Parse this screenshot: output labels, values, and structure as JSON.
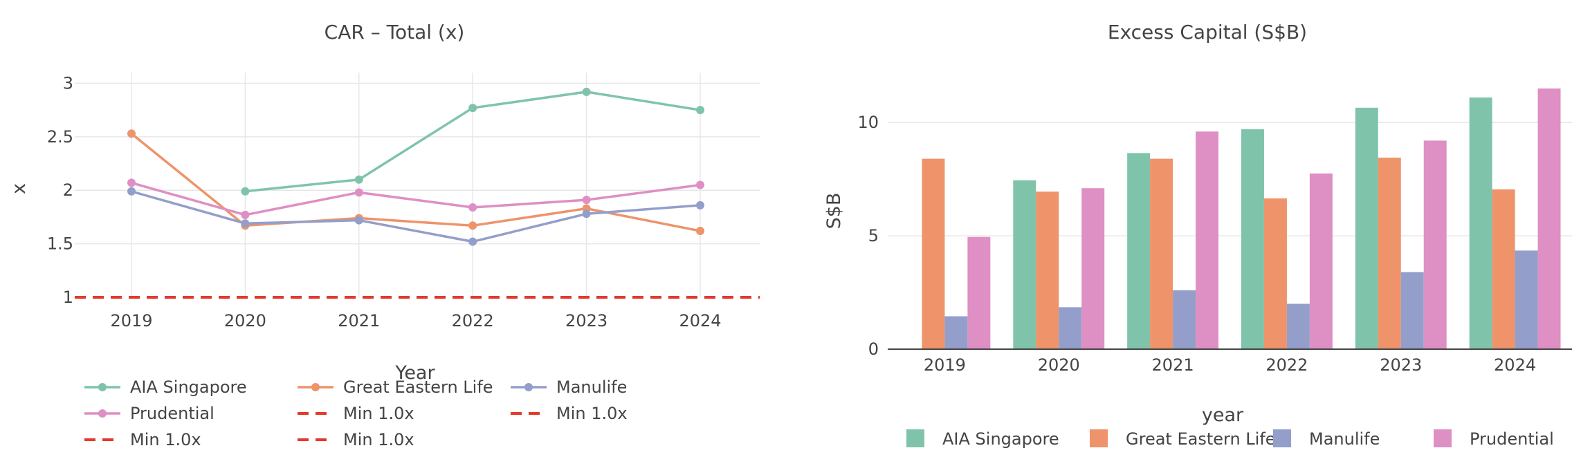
{
  "chart_data": [
    {
      "type": "line",
      "title": "CAR – Total (x)",
      "xlabel": "Year",
      "ylabel": "x",
      "x": [
        2019,
        2020,
        2021,
        2022,
        2023,
        2024
      ],
      "ylim": [
        1,
        3.1
      ],
      "yticks": [
        1,
        1.5,
        2,
        2.5,
        3
      ],
      "ytick_labels": [
        "1",
        "1.5",
        "2",
        "2.5",
        "3"
      ],
      "grid": true,
      "legend_position": "bottom",
      "series": [
        {
          "name": "AIA Singapore",
          "color": "#7fc4aa",
          "style": "line-markers",
          "values": [
            null,
            1.99,
            2.1,
            2.77,
            2.92,
            2.75
          ]
        },
        {
          "name": "Great Eastern Life",
          "color": "#ee936a",
          "style": "line-markers",
          "values": [
            2.53,
            1.67,
            1.74,
            1.67,
            1.83,
            1.62
          ]
        },
        {
          "name": "Manulife",
          "color": "#939fca",
          "style": "line-markers",
          "values": [
            1.99,
            1.69,
            1.72,
            1.52,
            1.78,
            1.86
          ]
        },
        {
          "name": "Prudential",
          "color": "#de8fc3",
          "style": "line-markers",
          "values": [
            2.07,
            1.77,
            1.98,
            1.84,
            1.91,
            2.05
          ]
        },
        {
          "name": "Min 1.0x",
          "color": "#e23a2e",
          "style": "dash",
          "values": [
            1,
            1,
            1,
            1,
            1,
            1
          ]
        },
        {
          "name": "Min 1.0x",
          "color": "#e23a2e",
          "style": "dash",
          "values": [
            1,
            1,
            1,
            1,
            1,
            1
          ]
        },
        {
          "name": "Min 1.0x",
          "color": "#e23a2e",
          "style": "dash",
          "values": [
            1,
            1,
            1,
            1,
            1,
            1
          ]
        },
        {
          "name": "Min 1.0x",
          "color": "#e23a2e",
          "style": "dash",
          "values": [
            1,
            1,
            1,
            1,
            1,
            1
          ]
        }
      ]
    },
    {
      "type": "bar",
      "title": "Excess Capital (S$B)",
      "xlabel": "year",
      "ylabel": "S$B",
      "categories": [
        "2019",
        "2020",
        "2021",
        "2022",
        "2023",
        "2024"
      ],
      "ylim": [
        0,
        12.2
      ],
      "yticks": [
        0,
        5,
        10
      ],
      "ytick_labels": [
        "0",
        "5",
        "10"
      ],
      "grid": true,
      "legend_position": "bottom",
      "series": [
        {
          "name": "AIA Singapore",
          "color": "#7fc4aa",
          "values": [
            null,
            7.45,
            8.65,
            9.7,
            10.65,
            11.1
          ]
        },
        {
          "name": "Great Eastern Life",
          "color": "#ee936a",
          "values": [
            8.4,
            6.95,
            8.4,
            6.65,
            8.45,
            7.05
          ]
        },
        {
          "name": "Manulife",
          "color": "#939fca",
          "values": [
            1.45,
            1.85,
            2.6,
            2.0,
            3.4,
            4.35
          ]
        },
        {
          "name": "Prudential",
          "color": "#de8fc3",
          "values": [
            4.95,
            7.1,
            9.6,
            7.75,
            9.2,
            11.5
          ]
        }
      ]
    }
  ]
}
